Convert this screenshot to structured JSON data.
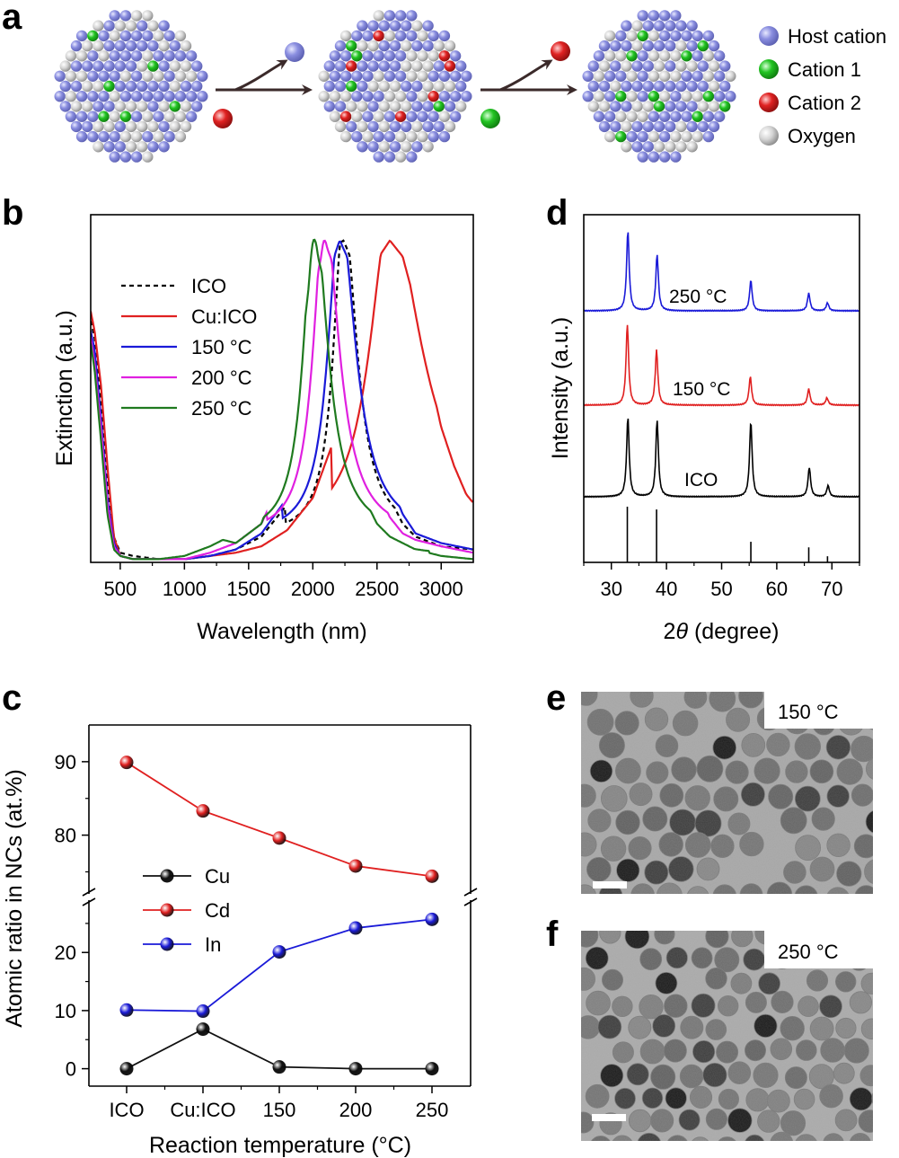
{
  "figure": {
    "panel_labels": {
      "a": "a",
      "b": "b",
      "c": "c",
      "d": "d",
      "e": "e",
      "f": "f"
    }
  },
  "panel_a": {
    "legend": [
      {
        "label": "Host cation",
        "color": "#8a8ee0"
      },
      {
        "label": "Cation 1",
        "color": "#22c422"
      },
      {
        "label": "Cation 2",
        "color": "#e02222"
      },
      {
        "label": "Oxygen",
        "color": "#cccccc"
      }
    ]
  },
  "colors": {
    "host": "#8a8ee0",
    "cation1": "#22c422",
    "cation2": "#e02222",
    "oxygen": "#cccccc"
  },
  "chart_data": [
    {
      "id": "b",
      "type": "line",
      "title": "",
      "xlabel": "Wavelength (nm)",
      "ylabel": "Extinction (a.u.)",
      "xlim": [
        270,
        3250
      ],
      "ylim": [
        0,
        1.08
      ],
      "xticks": [
        500,
        1000,
        1500,
        2000,
        2500,
        3000
      ],
      "xtick_labels": [
        "500",
        "1000",
        "1500",
        "2000",
        "2500",
        "3000"
      ],
      "legend_position": "upper-left",
      "series": [
        {
          "name": "ICO",
          "color": "#000000",
          "dash": true,
          "peak": 2240,
          "wl": 95,
          "wr": 125,
          "tail": 0.06,
          "x": [
            270,
            300,
            350,
            400,
            450,
            500,
            600,
            800,
            1000,
            1200,
            1400,
            1600,
            1800,
            1900,
            2000,
            2100,
            2200,
            2240,
            2300,
            2400,
            2500,
            2600,
            2700,
            2800,
            3000,
            3250
          ],
          "y": [
            0.75,
            0.7,
            0.5,
            0.25,
            0.08,
            0.03,
            0.02,
            0.01,
            0.01,
            0.02,
            0.04,
            0.08,
            0.18,
            0.3,
            0.55,
            0.85,
            0.99,
            1.0,
            0.94,
            0.65,
            0.38,
            0.2,
            0.12,
            0.08,
            0.05,
            0.04
          ]
        },
        {
          "name": "Cu:ICO",
          "color": "#e02020",
          "dash": false,
          "peak": 2600,
          "wl": 190,
          "wr": 300,
          "tail": 0.1,
          "x": [
            270,
            300,
            350,
            400,
            450,
            500,
            600,
            800,
            1000,
            1200,
            1400,
            1600,
            1800,
            2000,
            2200,
            2400,
            2500,
            2600,
            2700,
            2800,
            2900,
            3000,
            3100,
            3250
          ],
          "y": [
            0.78,
            0.72,
            0.55,
            0.3,
            0.08,
            0.02,
            0.01,
            0.01,
            0.01,
            0.02,
            0.03,
            0.05,
            0.1,
            0.2,
            0.42,
            0.78,
            0.94,
            1.0,
            0.95,
            0.8,
            0.6,
            0.42,
            0.3,
            0.16
          ]
        },
        {
          "name": "150 °C",
          "color": "#1a1ad8",
          "dash": false,
          "peak": 2210,
          "wl": 110,
          "wr": 150,
          "tail": 0.06,
          "x": [
            270,
            300,
            350,
            400,
            450,
            500,
            600,
            800,
            1000,
            1200,
            1400,
            1600,
            1800,
            1900,
            2000,
            2100,
            2200,
            2210,
            2300,
            2400,
            2500,
            2600,
            2700,
            2800,
            3000,
            3250
          ],
          "y": [
            0.72,
            0.66,
            0.45,
            0.2,
            0.06,
            0.02,
            0.01,
            0.01,
            0.01,
            0.02,
            0.04,
            0.09,
            0.2,
            0.33,
            0.58,
            0.87,
            0.99,
            1.0,
            0.92,
            0.68,
            0.42,
            0.25,
            0.15,
            0.09,
            0.06,
            0.04
          ]
        },
        {
          "name": "200 °C",
          "color": "#e020e0",
          "dash": false,
          "peak": 2090,
          "wl": 105,
          "wr": 140,
          "tail": 0.05,
          "x": [
            270,
            300,
            350,
            400,
            450,
            500,
            600,
            800,
            1000,
            1200,
            1400,
            1600,
            1800,
            1900,
            2000,
            2090,
            2200,
            2300,
            2400,
            2500,
            2600,
            2700,
            2800,
            3000,
            3250
          ],
          "y": [
            0.7,
            0.62,
            0.42,
            0.18,
            0.05,
            0.02,
            0.01,
            0.01,
            0.01,
            0.03,
            0.06,
            0.12,
            0.3,
            0.5,
            0.82,
            1.0,
            0.88,
            0.6,
            0.38,
            0.23,
            0.14,
            0.09,
            0.07,
            0.05,
            0.03
          ]
        },
        {
          "name": "250 °C",
          "color": "#1f7a1f",
          "dash": false,
          "peak": 2010,
          "wl": 100,
          "wr": 130,
          "tail": 0.04,
          "x": [
            270,
            300,
            350,
            400,
            450,
            500,
            600,
            800,
            1000,
            1200,
            1300,
            1400,
            1600,
            1800,
            1900,
            2010,
            2100,
            2200,
            2300,
            2400,
            2500,
            2600,
            2700,
            2800,
            3000,
            3250
          ],
          "y": [
            0.68,
            0.6,
            0.38,
            0.15,
            0.04,
            0.02,
            0.01,
            0.01,
            0.02,
            0.05,
            0.07,
            0.06,
            0.12,
            0.36,
            0.62,
            1.0,
            0.85,
            0.56,
            0.34,
            0.2,
            0.12,
            0.08,
            0.06,
            0.04,
            0.02,
            0.01
          ]
        }
      ]
    },
    {
      "id": "d",
      "type": "line",
      "title": "",
      "xlabel": "2θ (degree)",
      "xlabel_prefix": "2",
      "xlabel_symbol": "θ",
      "xlabel_suffix": " (degree)",
      "ylabel": "Intensity (a.u.)",
      "xlim": [
        25,
        75
      ],
      "xticks": [
        30,
        40,
        50,
        60,
        70
      ],
      "xtick_labels": [
        "30",
        "40",
        "50",
        "60",
        "70"
      ],
      "series": [
        {
          "name": "250 °C",
          "color": "#1a1ad8",
          "peaks": [
            [
              33.0,
              1.0
            ],
            [
              38.3,
              0.7
            ],
            [
              55.3,
              0.38
            ],
            [
              65.8,
              0.22
            ],
            [
              69.2,
              0.1
            ]
          ]
        },
        {
          "name": "150 °C",
          "color": "#e02020",
          "peaks": [
            [
              32.9,
              1.0
            ],
            [
              38.2,
              0.68
            ],
            [
              55.2,
              0.35
            ],
            [
              65.8,
              0.2
            ],
            [
              69.1,
              0.09
            ]
          ]
        },
        {
          "name": "ICO",
          "color": "#000000",
          "peaks": [
            [
              33.0,
              1.0
            ],
            [
              38.3,
              0.97
            ],
            [
              55.3,
              0.95
            ],
            [
              65.9,
              0.37
            ],
            [
              69.3,
              0.14
            ]
          ]
        }
      ],
      "reference_lines": {
        "x": [
          32.9,
          38.2,
          55.3,
          65.8,
          69.2
        ],
        "heights": [
          1.0,
          0.95,
          0.37,
          0.27,
          0.11
        ]
      }
    },
    {
      "id": "c",
      "type": "line",
      "title": "",
      "xlabel": "Reaction temperature (°C)",
      "ylabel": "Atomic ratio in NCs (at.%)",
      "categories": [
        "ICO",
        "Cu:ICO",
        "150",
        "200",
        "250"
      ],
      "y_upper": {
        "range": [
          72,
          95
        ],
        "ticks": [
          80,
          90
        ]
      },
      "y_lower": {
        "range": [
          -3,
          29
        ],
        "ticks": [
          0,
          10,
          20
        ]
      },
      "axis_break": true,
      "series": [
        {
          "name": "Cu",
          "color": "#111111",
          "values": [
            0,
            6.8,
            0.3,
            0.0,
            0.0
          ]
        },
        {
          "name": "Cd",
          "color": "#e02020",
          "values": [
            89.9,
            83.3,
            79.6,
            75.8,
            74.4
          ]
        },
        {
          "name": "In",
          "color": "#1a1ad8",
          "values": [
            10.1,
            9.9,
            20.1,
            24.2,
            25.7
          ]
        }
      ]
    }
  ],
  "panel_e": {
    "label": "150 °C"
  },
  "panel_f": {
    "label": "250 °C"
  }
}
